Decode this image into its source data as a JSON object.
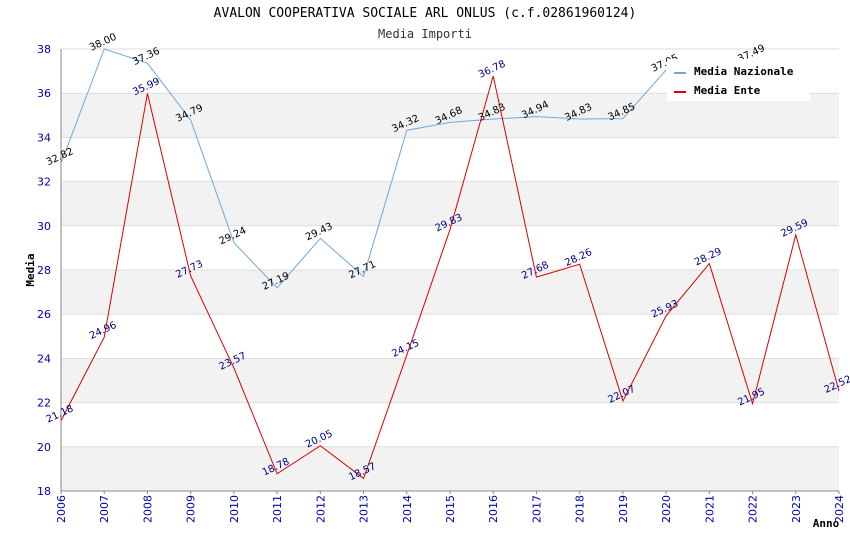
{
  "chart_data": {
    "type": "line",
    "title": "AVALON COOPERATIVA SOCIALE ARL ONLUS (c.f.02861960124)",
    "subtitle": "Media Importi",
    "xlabel": "Anno",
    "ylabel": "Media",
    "ylim": [
      18,
      38
    ],
    "yticks": [
      18,
      20,
      22,
      24,
      26,
      28,
      30,
      32,
      34,
      36,
      38
    ],
    "x": [
      "2006",
      "2007",
      "2008",
      "2009",
      "2010",
      "2011",
      "2012",
      "2013",
      "2014",
      "2015",
      "2016",
      "2017",
      "2018",
      "2019",
      "2020",
      "2021",
      "2022",
      "2023",
      "2024"
    ],
    "grid": true,
    "legend_position": "top-right",
    "series": [
      {
        "name": "Media Nazionale",
        "color": "#6fa8dc",
        "values": [
          32.82,
          38.0,
          37.36,
          34.79,
          29.24,
          27.19,
          29.43,
          27.71,
          34.32,
          34.68,
          34.83,
          34.94,
          34.83,
          34.85,
          37.05,
          null,
          null,
          null,
          null
        ],
        "labels": [
          "32.82",
          "38.00",
          "37.36",
          "34.79",
          "29.24",
          "27.19",
          "29.43",
          "27.71",
          "34.32",
          "34.68",
          "34.83",
          "34.94",
          "34.83",
          "34.85",
          "37.05",
          "",
          "37.49",
          "",
          ""
        ],
        "extra_label_value": 37.49
      },
      {
        "name": "Media Ente",
        "color": "#dd0000",
        "values": [
          21.18,
          24.96,
          35.99,
          27.73,
          23.57,
          18.78,
          20.05,
          18.57,
          24.15,
          29.83,
          36.78,
          27.68,
          28.26,
          22.07,
          25.93,
          28.29,
          21.95,
          29.59,
          22.52
        ],
        "labels": [
          "21.18",
          "24.96",
          "35.99",
          "27.73",
          "23.57",
          "18.78",
          "20.05",
          "18.57",
          "24.15",
          "29.83",
          "36.78",
          "27.68",
          "28.26",
          "22.07",
          "25.93",
          "28.29",
          "21.95",
          "29.59",
          "22.52"
        ]
      }
    ]
  }
}
